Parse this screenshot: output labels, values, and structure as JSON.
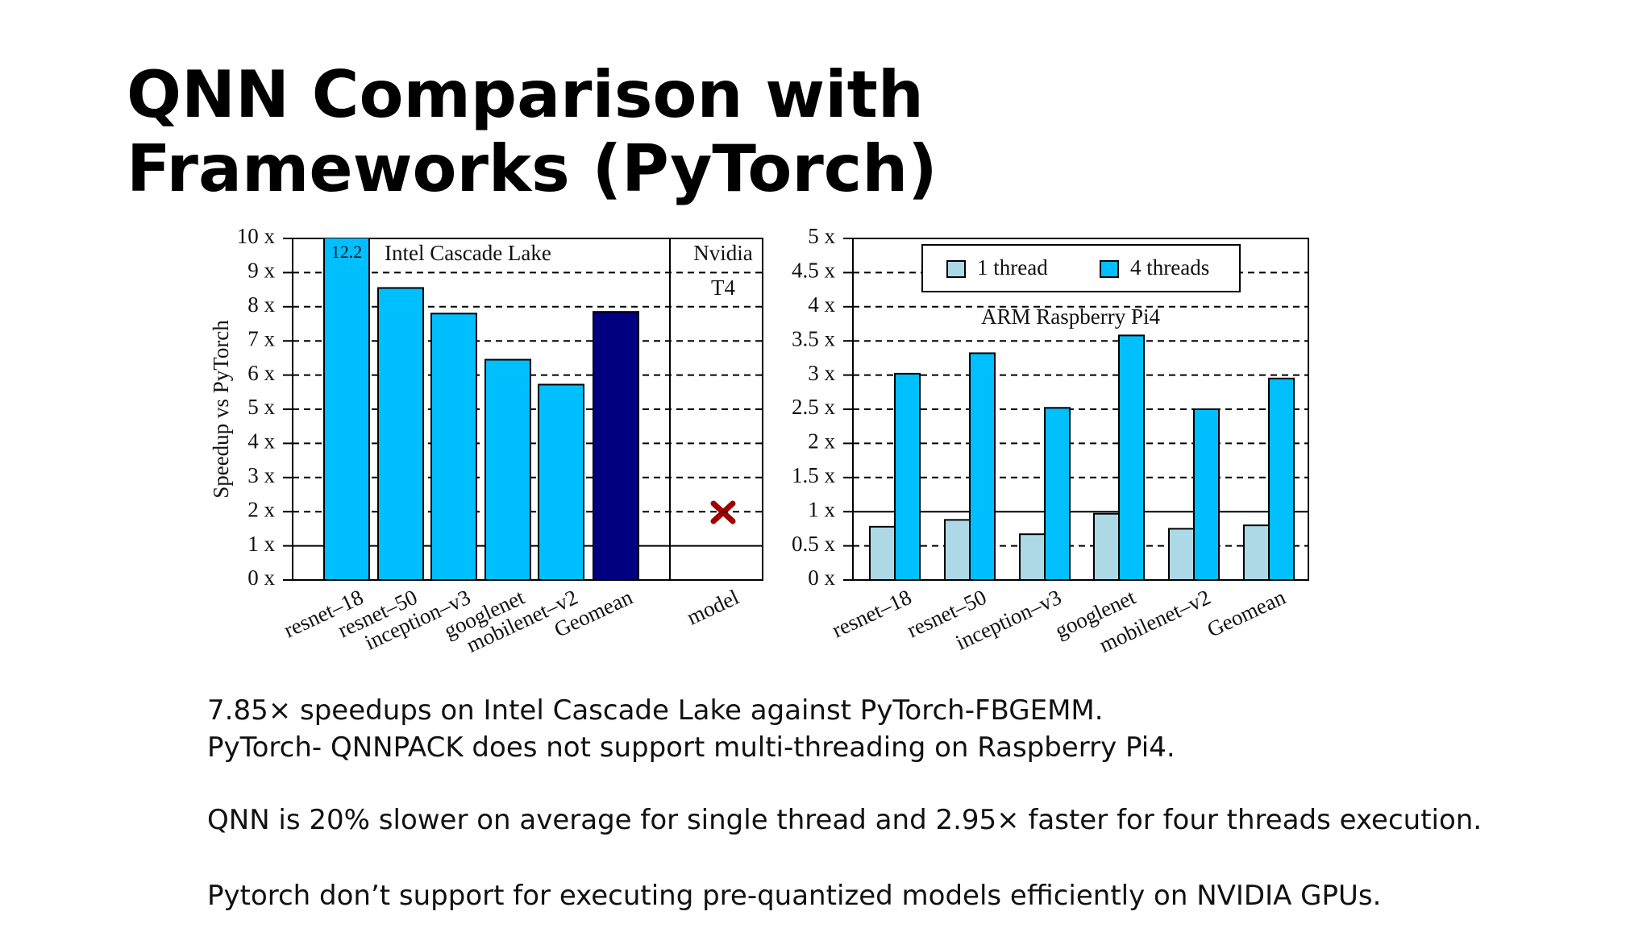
{
  "title": "QNN Comparison with Frameworks (PyTorch)",
  "chart_data": [
    {
      "type": "bar",
      "ylabel": "Speedup vs PyTorch",
      "categories": [
        "resnet–18",
        "resnet–50",
        "inception–v3",
        "googlenet",
        "mobilenet–v2",
        "Geomean",
        "model"
      ],
      "values": [
        12.2,
        8.55,
        7.8,
        6.45,
        5.72,
        7.85,
        null
      ],
      "value_labels": [
        "12.2",
        null,
        null,
        null,
        null,
        null,
        null
      ],
      "colors": [
        "#00bfff",
        "#00bfff",
        "#00bfff",
        "#00bfff",
        "#00bfff",
        "#000080",
        "#00bfff"
      ],
      "annotations": [
        "Intel Cascade Lake",
        "Nvidia",
        "T4"
      ],
      "ylim": [
        0,
        10
      ],
      "yticks": [
        {
          "value": 0,
          "label": "0 x"
        },
        {
          "value": 1,
          "label": "1 x"
        },
        {
          "value": 2,
          "label": "2 x"
        },
        {
          "value": 3,
          "label": "3 x"
        },
        {
          "value": 4,
          "label": "4 x"
        },
        {
          "value": 5,
          "label": "5 x"
        },
        {
          "value": 6,
          "label": "6 x"
        },
        {
          "value": 7,
          "label": "7 x"
        },
        {
          "value": 8,
          "label": "8 x"
        },
        {
          "value": 9,
          "label": "9 x"
        },
        {
          "value": 10,
          "label": "10 x"
        }
      ],
      "grid": true,
      "refline": 1
    },
    {
      "type": "grouped_bar",
      "categories": [
        "resnet–18",
        "resnet–50",
        "inception–v3",
        "googlenet",
        "mobilenet–v2",
        "Geomean"
      ],
      "series": [
        {
          "name": "1 thread",
          "color": "#add8e6",
          "values": [
            0.78,
            0.88,
            0.67,
            0.97,
            0.75,
            0.8
          ]
        },
        {
          "name": "4 threads",
          "color": "#00bfff",
          "values": [
            3.02,
            3.32,
            2.52,
            3.58,
            2.5,
            2.95
          ]
        }
      ],
      "annotations": [
        "ARM Raspberry Pi4"
      ],
      "ylim": [
        0,
        5
      ],
      "yticks": [
        {
          "value": 0,
          "label": "0 x"
        },
        {
          "value": 0.5,
          "label": "0.5 x"
        },
        {
          "value": 1,
          "label": "1 x"
        },
        {
          "value": 1.5,
          "label": "1.5 x"
        },
        {
          "value": 2,
          "label": "2 x"
        },
        {
          "value": 2.5,
          "label": "2.5 x"
        },
        {
          "value": 3,
          "label": "3 x"
        },
        {
          "value": 3.5,
          "label": "3.5 x"
        },
        {
          "value": 4,
          "label": "4 x"
        },
        {
          "value": 4.5,
          "label": "4.5 x"
        },
        {
          "value": 5,
          "label": "5 x"
        }
      ],
      "grid": true,
      "refline": 1,
      "legend": "top"
    }
  ],
  "body": [
    "7.85× speedups on Intel Cascade Lake against PyTorch-FBGEMM.",
    "PyTorch- QNNPACK does not support multi-threading on Raspberry Pi4.",
    "QNN is 20% slower on average for single thread and 2.95× faster for four threads execution.",
    "Pytorch don’t support for executing pre-quantized models efficiently on NVIDIA GPUs."
  ]
}
